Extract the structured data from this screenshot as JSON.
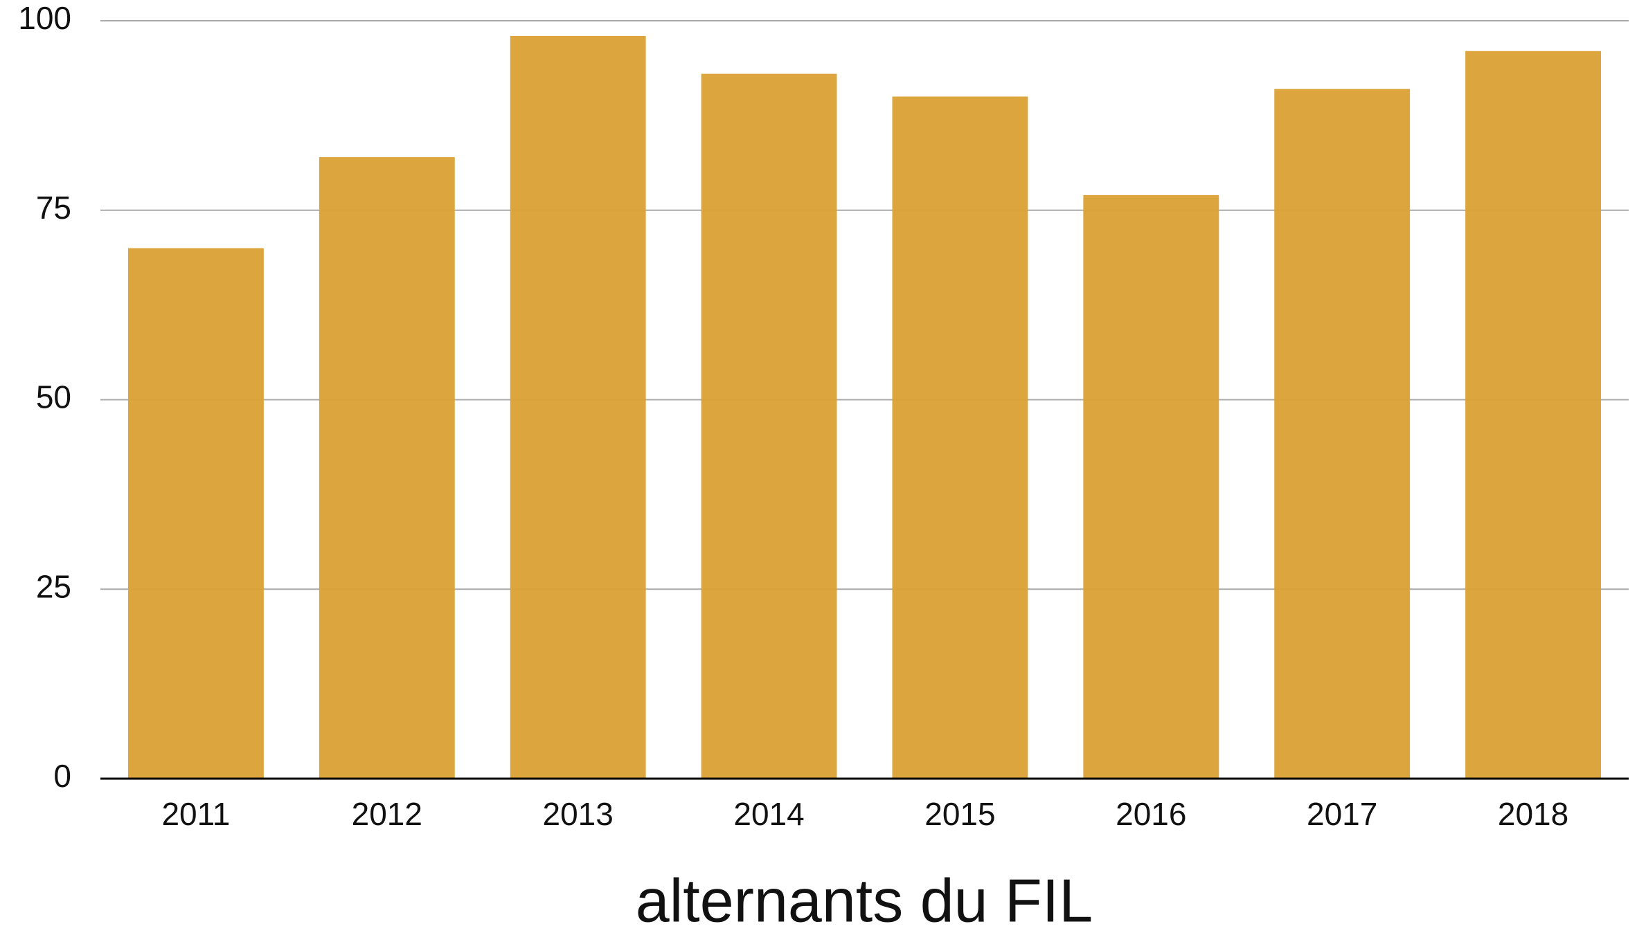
{
  "chart_data": {
    "type": "bar",
    "xlabel": "alternants du FIL",
    "categories": [
      "2011",
      "2012",
      "2013",
      "2014",
      "2015",
      "2016",
      "2017",
      "2018"
    ],
    "values": [
      70,
      82,
      98,
      93,
      90,
      77,
      91,
      96
    ],
    "color": "#dba237",
    "ylim": [
      0,
      100
    ],
    "yticks": [
      0,
      25,
      50,
      75,
      100
    ],
    "grid": true
  }
}
